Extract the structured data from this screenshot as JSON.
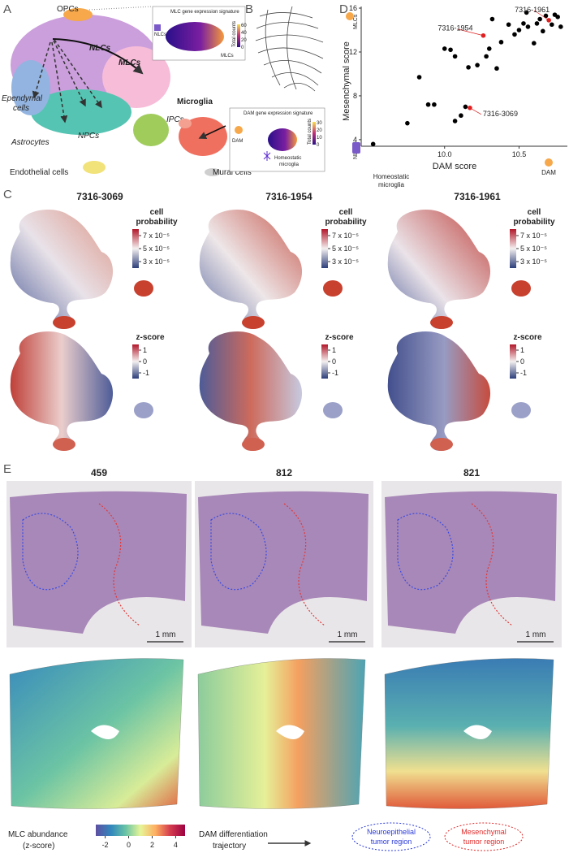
{
  "panel_labels": [
    "A",
    "B",
    "C",
    "D",
    "E"
  ],
  "A": {
    "cell_types": {
      "opcs": "OPCs",
      "nlcs": "NLCs",
      "mlcs": "MLCs",
      "ependymal": [
        "Ependymal",
        "cells"
      ],
      "astrocytes": "Astrocytes",
      "npcs": "NPCs",
      "ipcs": "IPCs",
      "endothelial": "Endothelial cells",
      "mural": "Mural cells"
    },
    "inset": {
      "title": "MLC gene expression signature",
      "labels": [
        "NLCs",
        "MLCs"
      ],
      "legend_title": "Total counts",
      "legend_ticks": [
        "60",
        "40",
        "20",
        "0"
      ]
    }
  },
  "B": {
    "microglia": "Microglia",
    "inset": {
      "title": "DAM gene expression signature",
      "dam": "DAM",
      "homeostatic": [
        "Homeostatic",
        "microglia"
      ],
      "legend_title": "Total counts",
      "legend_ticks": [
        "30",
        "20",
        "10",
        "0"
      ]
    }
  },
  "chart_data": {
    "type": "scatter",
    "x_label": "DAM score",
    "y_label": "Mesenchymal score",
    "x": [
      9.52,
      9.75,
      9.83,
      9.89,
      9.93,
      10.07,
      10.11,
      10.14,
      10.0,
      10.04,
      10.07,
      10.16,
      10.22,
      10.28,
      10.3,
      10.35,
      10.38,
      10.32,
      10.43,
      10.47,
      10.5,
      10.53,
      10.56,
      10.6,
      10.62,
      10.64,
      10.66,
      10.72,
      10.74,
      10.76,
      10.78,
      10.55,
      10.68
    ],
    "values": [
      3.6,
      5.5,
      9.7,
      7.2,
      7.2,
      5.7,
      6.2,
      7.0,
      12.3,
      12.2,
      11.6,
      10.6,
      10.8,
      11.6,
      12.3,
      10.5,
      12.9,
      15.0,
      14.5,
      13.6,
      14.0,
      14.6,
      14.3,
      12.8,
      14.6,
      15.0,
      13.9,
      14.5,
      15.4,
      15.2,
      14.3,
      15.6,
      15.3
    ],
    "color": "#000000",
    "highlight_color": "#e02020",
    "annotations": [
      {
        "label": "7316-1961",
        "x": 10.7,
        "y": 14.9
      },
      {
        "label": "7316-1954",
        "x": 10.26,
        "y": 13.5
      },
      {
        "label": "7316-3069",
        "x": 10.17,
        "y": 6.9
      }
    ],
    "xlim": [
      9.44,
      10.83
    ],
    "ylim": [
      3.4,
      16.15
    ],
    "xticks": [
      {
        "value": 10,
        "label": "10.0"
      },
      {
        "value": 10.5,
        "label": "10.5"
      }
    ],
    "yticks": [
      4,
      8,
      12,
      16
    ],
    "corner_labels": {
      "top": "MLCs",
      "middle": "NLCs",
      "bottom_left": [
        "Homeostatic",
        "microglia"
      ],
      "bottom_right": "DAM"
    }
  },
  "C": {
    "samples": [
      "7316-3069",
      "7316-1954",
      "7316-1961"
    ],
    "probability_title": [
      "cell",
      "probability"
    ],
    "probability_scale": {
      "lim": [
        2e-05,
        8e-05
      ],
      "ticks": [
        {
          "value": 7e-05,
          "label": "7 x 10⁻⁵"
        },
        {
          "value": 5e-05,
          "label": "5 x 10⁻⁵"
        },
        {
          "value": 3e-05,
          "label": "3 x 10⁻⁵"
        }
      ]
    },
    "zscore_title": "z-score",
    "zscore_scale": {
      "lim": [
        -1.5,
        1.5
      ],
      "ticks": [
        1,
        0,
        -1
      ]
    }
  },
  "E": {
    "samples": [
      "459",
      "812",
      "821"
    ],
    "scale_bar": "1 mm",
    "legend_title": [
      "MLC abundance",
      "(z-score)"
    ],
    "colorbar": {
      "lim": [
        -2.8,
        4.8
      ],
      "ticks": [
        -2,
        0,
        2,
        4
      ]
    },
    "trajectory": [
      "DAM differentiation",
      "trajectory"
    ],
    "regions": [
      [
        "Neuroepithelial",
        "tumor region"
      ],
      [
        "Mesenchymal",
        "tumor region"
      ]
    ]
  }
}
